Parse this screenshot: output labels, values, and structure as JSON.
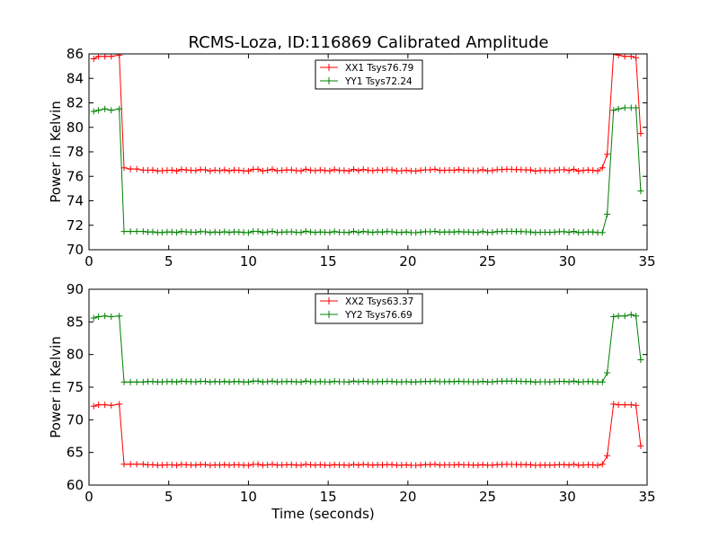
{
  "figure_title": "RCMS-Loza, ID:116869 Calibrated Amplitude",
  "colors": {
    "xx": "#ff0000",
    "yy": "#008000",
    "axes": "#000000",
    "background": "#ffffff"
  },
  "chart_data": [
    {
      "type": "line",
      "title": "RCMS-Loza, ID:116869 Calibrated Amplitude",
      "xlabel": "",
      "ylabel": "Power in Kelvin",
      "xlim": [
        0,
        35
      ],
      "ylim": [
        70,
        86
      ],
      "xticks": [
        "0",
        "5",
        "10",
        "15",
        "20",
        "25",
        "30",
        "35"
      ],
      "yticks": [
        "70",
        "72",
        "74",
        "76",
        "78",
        "80",
        "82",
        "84",
        "86"
      ],
      "grid": false,
      "legend": "top-center",
      "marker": "+",
      "series": [
        {
          "name": "XX1 Tsys76.79",
          "color": "#ff0000",
          "points": [
            [
              0.3,
              85.6
            ],
            [
              0.6,
              85.8
            ],
            [
              1.0,
              85.8
            ],
            [
              1.4,
              85.8
            ],
            [
              1.9,
              85.9
            ],
            [
              2.2,
              76.7
            ],
            [
              2.6,
              76.6
            ],
            [
              3.0,
              76.6
            ],
            [
              3.4,
              76.5
            ],
            [
              32.2,
              76.7
            ],
            [
              32.5,
              77.8
            ],
            [
              32.9,
              86.0
            ],
            [
              33.2,
              85.9
            ],
            [
              33.6,
              85.8
            ],
            [
              34.0,
              85.8
            ],
            [
              34.3,
              85.7
            ],
            [
              34.6,
              79.5
            ]
          ],
          "plateau": {
            "x_start": 3.4,
            "x_end": 32.2,
            "step": 0.3,
            "base": 76.5,
            "wobble": 0.08
          }
        },
        {
          "name": "YY1 Tsys72.24",
          "color": "#008000",
          "points": [
            [
              0.3,
              81.3
            ],
            [
              0.6,
              81.4
            ],
            [
              1.0,
              81.5
            ],
            [
              1.4,
              81.4
            ],
            [
              1.9,
              81.5
            ],
            [
              2.2,
              71.5
            ],
            [
              2.6,
              71.5
            ],
            [
              3.0,
              71.5
            ],
            [
              3.4,
              71.5
            ],
            [
              32.2,
              71.4
            ],
            [
              32.5,
              72.9
            ],
            [
              32.9,
              81.4
            ],
            [
              33.2,
              81.5
            ],
            [
              33.6,
              81.6
            ],
            [
              34.0,
              81.6
            ],
            [
              34.3,
              81.6
            ],
            [
              34.6,
              74.8
            ]
          ],
          "plateau": {
            "x_start": 3.4,
            "x_end": 32.2,
            "step": 0.3,
            "base": 71.45,
            "wobble": 0.06
          }
        }
      ]
    },
    {
      "type": "line",
      "title": "",
      "xlabel": "Time (seconds)",
      "ylabel": "Power in Kelvin",
      "xlim": [
        0,
        35
      ],
      "ylim": [
        60,
        90
      ],
      "xticks": [
        "0",
        "5",
        "10",
        "15",
        "20",
        "25",
        "30",
        "35"
      ],
      "yticks": [
        "60",
        "65",
        "70",
        "75",
        "80",
        "85",
        "90"
      ],
      "grid": false,
      "legend": "top-center",
      "marker": "+",
      "series": [
        {
          "name": "XX2 Tsys63.37",
          "color": "#ff0000",
          "points": [
            [
              0.3,
              72.1
            ],
            [
              0.6,
              72.3
            ],
            [
              1.0,
              72.3
            ],
            [
              1.4,
              72.2
            ],
            [
              1.9,
              72.4
            ],
            [
              2.2,
              63.2
            ],
            [
              2.6,
              63.2
            ],
            [
              3.0,
              63.2
            ],
            [
              3.4,
              63.2
            ],
            [
              32.2,
              63.2
            ],
            [
              32.5,
              64.5
            ],
            [
              32.9,
              72.4
            ],
            [
              33.2,
              72.3
            ],
            [
              33.6,
              72.3
            ],
            [
              34.0,
              72.3
            ],
            [
              34.3,
              72.2
            ],
            [
              34.6,
              66.0
            ]
          ],
          "plateau": {
            "x_start": 3.4,
            "x_end": 32.2,
            "step": 0.3,
            "base": 63.1,
            "wobble": 0.08
          }
        },
        {
          "name": "YY2 Tsys76.69",
          "color": "#008000",
          "points": [
            [
              0.3,
              85.6
            ],
            [
              0.6,
              85.8
            ],
            [
              1.0,
              85.9
            ],
            [
              1.4,
              85.8
            ],
            [
              1.9,
              85.9
            ],
            [
              2.2,
              75.8
            ],
            [
              2.6,
              75.8
            ],
            [
              3.0,
              75.8
            ],
            [
              3.4,
              75.8
            ],
            [
              32.2,
              75.8
            ],
            [
              32.5,
              77.2
            ],
            [
              32.9,
              85.8
            ],
            [
              33.2,
              85.9
            ],
            [
              33.6,
              85.9
            ],
            [
              34.0,
              86.1
            ],
            [
              34.3,
              85.9
            ],
            [
              34.6,
              79.2
            ]
          ],
          "plateau": {
            "x_start": 3.4,
            "x_end": 32.2,
            "step": 0.3,
            "base": 75.85,
            "wobble": 0.08
          }
        }
      ]
    }
  ]
}
